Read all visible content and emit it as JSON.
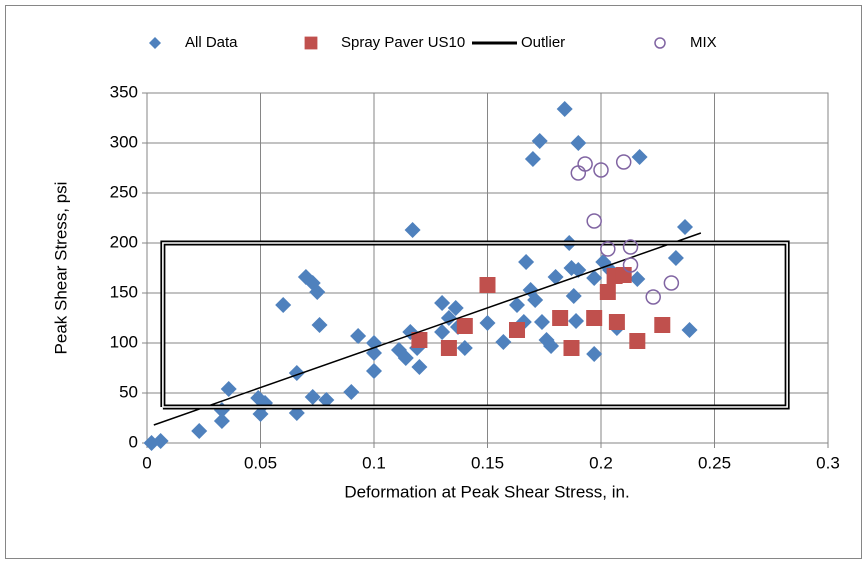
{
  "chart_data": {
    "type": "scatter",
    "xlabel": "Deformation at Peak Shear Stress, in.",
    "ylabel": "Peak Shear Stress, psi",
    "xlim": [
      0,
      0.3
    ],
    "xticks": [
      0,
      0.05,
      0.1,
      0.15,
      0.2,
      0.25,
      0.3
    ],
    "ylim": [
      0,
      350
    ],
    "yticks": [
      0,
      50,
      100,
      150,
      200,
      250,
      300,
      350
    ],
    "grid": true,
    "legend": "top",
    "series": [
      {
        "name": "All Data",
        "color": "#4f81bd",
        "marker": "diamond",
        "x": [
          0.002,
          0.006,
          0.023,
          0.033,
          0.033,
          0.036,
          0.049,
          0.05,
          0.052,
          0.06,
          0.066,
          0.066,
          0.07,
          0.073,
          0.073,
          0.075,
          0.076,
          0.079,
          0.09,
          0.093,
          0.1,
          0.1,
          0.1,
          0.111,
          0.114,
          0.116,
          0.117,
          0.12,
          0.119,
          0.13,
          0.13,
          0.133,
          0.136,
          0.137,
          0.14,
          0.15,
          0.157,
          0.163,
          0.166,
          0.167,
          0.169,
          0.17,
          0.171,
          0.173,
          0.174,
          0.176,
          0.178,
          0.18,
          0.184,
          0.186,
          0.187,
          0.188,
          0.189,
          0.19,
          0.19,
          0.197,
          0.197,
          0.201,
          0.204,
          0.207,
          0.216,
          0.217,
          0.233,
          0.237,
          0.239
        ],
        "values": [
          0,
          2,
          12,
          22,
          33,
          54,
          45,
          29,
          40,
          138,
          70,
          30,
          166,
          160,
          46,
          151,
          118,
          43,
          51,
          107,
          100,
          72,
          90,
          93,
          85,
          111,
          213,
          76,
          95,
          111,
          140,
          125,
          135,
          116,
          95,
          120,
          101,
          138,
          121,
          181,
          153,
          284,
          143,
          302,
          121,
          103,
          97,
          166,
          334,
          200,
          175,
          147,
          122,
          300,
          173,
          165,
          89,
          181,
          173,
          115,
          164,
          286,
          185,
          216,
          113
        ]
      },
      {
        "name": "Spray Paver US10",
        "color": "#c0504d",
        "marker": "square",
        "x": [
          0.12,
          0.133,
          0.14,
          0.15,
          0.163,
          0.182,
          0.187,
          0.197,
          0.203,
          0.206,
          0.207,
          0.21,
          0.216,
          0.227
        ],
        "values": [
          103,
          95,
          117,
          158,
          113,
          125,
          95,
          125,
          151,
          167,
          121,
          168,
          102,
          118
        ]
      },
      {
        "name": "Outlier",
        "color": "#000000",
        "marker": "line",
        "x": [
          0.007,
          0.282,
          0.282,
          0.007,
          0.007
        ],
        "values": [
          36,
          36,
          200,
          200,
          36
        ]
      },
      {
        "name": "MIX",
        "color": "#8064a2",
        "marker": "circle",
        "x": [
          0.19,
          0.193,
          0.2,
          0.21,
          0.197,
          0.203,
          0.213,
          0.213,
          0.223,
          0.231
        ],
        "values": [
          270,
          279,
          273,
          281,
          222,
          194,
          196,
          178,
          146,
          160
        ]
      }
    ],
    "trendline": {
      "color": "#000000",
      "x": [
        0.003,
        0.244
      ],
      "values": [
        18,
        210
      ]
    }
  }
}
